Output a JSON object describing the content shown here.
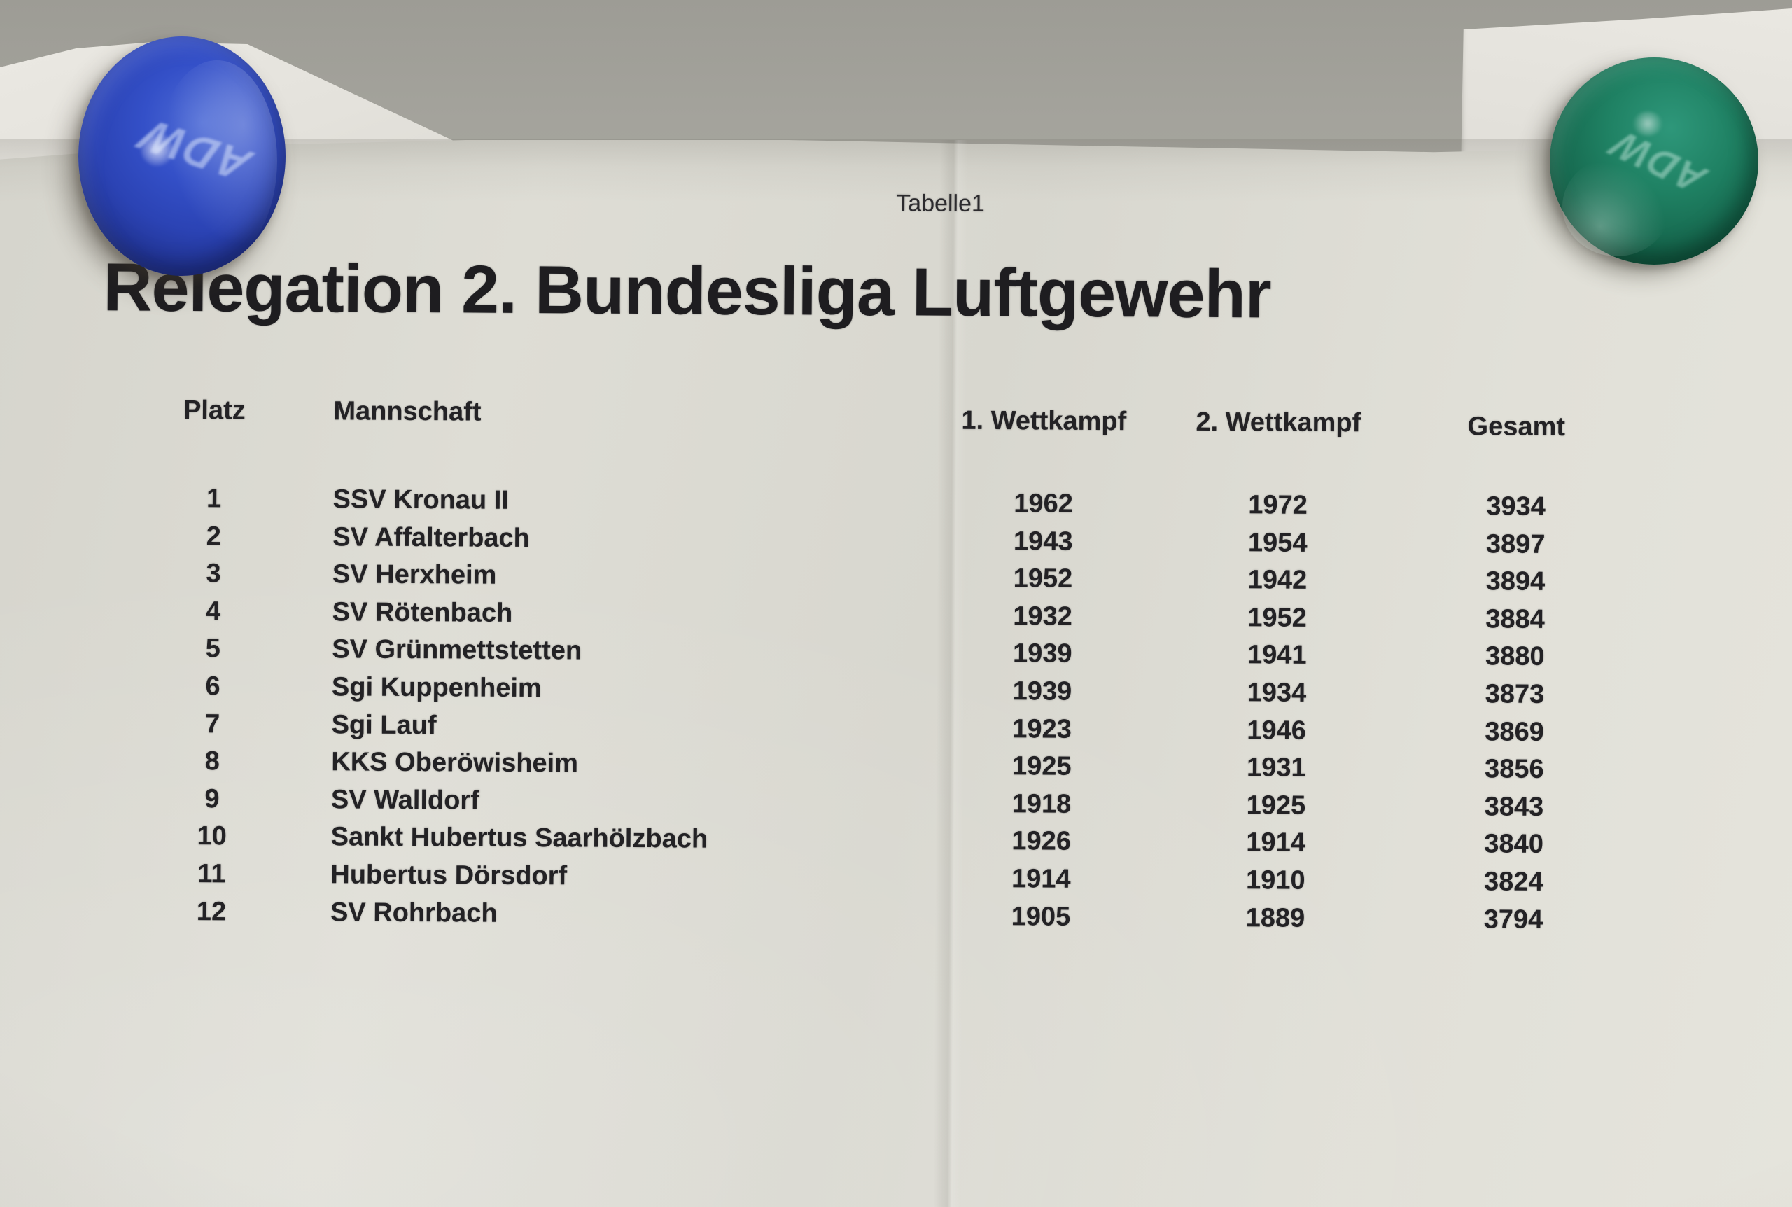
{
  "scene": {
    "board_color": "#a8a7a0",
    "paper_color": "#deddd5",
    "text_color": "#232225",
    "magnet_blue_color": "#2b43b4",
    "magnet_green_color": "#176a50",
    "magnet_print": "ADW"
  },
  "sheet": {
    "tab_label": "Tabelle1",
    "title": "Relegation 2. Bundesliga Luftgewehr"
  },
  "table": {
    "headers": {
      "platz": "Platz",
      "mannschaft": "Mannschaft",
      "wettkampf1": "1. Wettkampf",
      "wettkampf2": "2. Wettkampf",
      "gesamt": "Gesamt"
    },
    "rows": [
      {
        "platz": "1",
        "mannschaft": "SSV Kronau II",
        "wettkampf1": "1962",
        "wettkampf2": "1972",
        "gesamt": "3934"
      },
      {
        "platz": "2",
        "mannschaft": "SV Affalterbach",
        "wettkampf1": "1943",
        "wettkampf2": "1954",
        "gesamt": "3897"
      },
      {
        "platz": "3",
        "mannschaft": "SV Herxheim",
        "wettkampf1": "1952",
        "wettkampf2": "1942",
        "gesamt": "3894"
      },
      {
        "platz": "4",
        "mannschaft": "SV Rötenbach",
        "wettkampf1": "1932",
        "wettkampf2": "1952",
        "gesamt": "3884"
      },
      {
        "platz": "5",
        "mannschaft": "SV Grünmettstetten",
        "wettkampf1": "1939",
        "wettkampf2": "1941",
        "gesamt": "3880"
      },
      {
        "platz": "6",
        "mannschaft": "Sgi Kuppenheim",
        "wettkampf1": "1939",
        "wettkampf2": "1934",
        "gesamt": "3873"
      },
      {
        "platz": "7",
        "mannschaft": "Sgi Lauf",
        "wettkampf1": "1923",
        "wettkampf2": "1946",
        "gesamt": "3869"
      },
      {
        "platz": "8",
        "mannschaft": "KKS Oberöwisheim",
        "wettkampf1": "1925",
        "wettkampf2": "1931",
        "gesamt": "3856"
      },
      {
        "platz": "9",
        "mannschaft": "SV Walldorf",
        "wettkampf1": "1918",
        "wettkampf2": "1925",
        "gesamt": "3843"
      },
      {
        "platz": "10",
        "mannschaft": "Sankt Hubertus Saarhölzbach",
        "wettkampf1": "1926",
        "wettkampf2": "1914",
        "gesamt": "3840"
      },
      {
        "platz": "11",
        "mannschaft": "Hubertus Dörsdorf",
        "wettkampf1": "1914",
        "wettkampf2": "1910",
        "gesamt": "3824"
      },
      {
        "platz": "12",
        "mannschaft": "SV Rohrbach",
        "wettkampf1": "1905",
        "wettkampf2": "1889",
        "gesamt": "3794"
      }
    ]
  }
}
